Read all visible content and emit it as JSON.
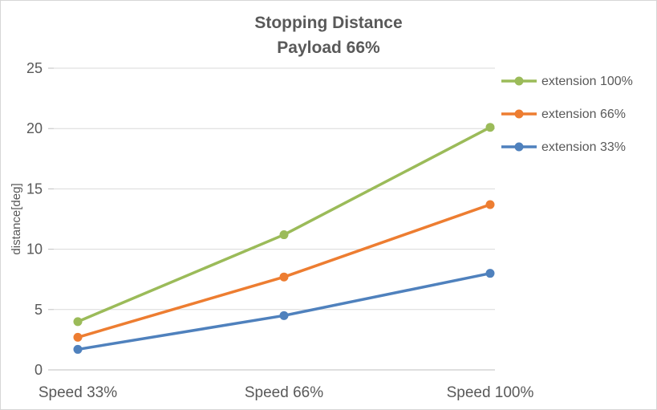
{
  "chart_data": {
    "type": "line",
    "title": "Stopping Distance",
    "subtitle": "Payload 66%",
    "ylabel": "distance[deg]",
    "xlabel": "",
    "categories": [
      "Speed 33%",
      "Speed 66%",
      "Speed 100%"
    ],
    "series": [
      {
        "name": "extension 100%",
        "color": "#9BBB59",
        "values": [
          4.0,
          11.2,
          20.1
        ]
      },
      {
        "name": "extension 66%",
        "color": "#ED7D31",
        "values": [
          2.7,
          7.7,
          13.7
        ]
      },
      {
        "name": "extension 33%",
        "color": "#4F81BD",
        "values": [
          1.7,
          4.5,
          8.0
        ]
      }
    ],
    "ylim": [
      0,
      25
    ],
    "ytick_step": 5,
    "yticks": [
      0,
      5,
      10,
      15,
      20,
      25
    ],
    "grid": true,
    "legend_position": "right",
    "colors": {
      "axis_text": "#595959",
      "gridline": "#d9d9d9",
      "axis_line": "#bfbfbf",
      "background": "#ffffff",
      "border": "#d6d6d6"
    }
  }
}
